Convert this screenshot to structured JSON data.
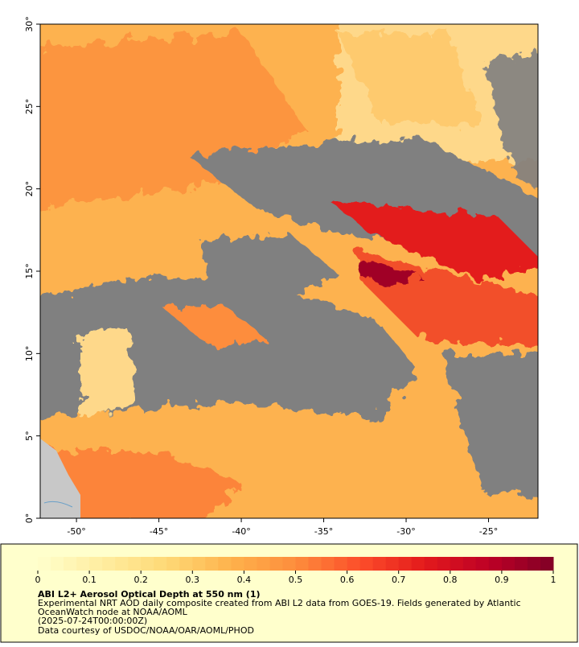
{
  "map": {
    "xlim": [
      -52.2,
      -22.0
    ],
    "ylim": [
      0,
      30
    ],
    "xticks": [
      {
        "value": -50,
        "label": "-50°"
      },
      {
        "value": -45,
        "label": "-45°"
      },
      {
        "value": -40,
        "label": "-40°"
      },
      {
        "value": -35,
        "label": "-35°"
      },
      {
        "value": -30,
        "label": "-30°"
      },
      {
        "value": -25,
        "label": "-25°"
      }
    ],
    "yticks": [
      {
        "value": 0,
        "label": "0°"
      },
      {
        "value": 5,
        "label": "5°"
      },
      {
        "value": 10,
        "label": "10°"
      },
      {
        "value": 15,
        "label": "15°"
      },
      {
        "value": 20,
        "label": "20°"
      },
      {
        "value": 25,
        "label": "25°"
      },
      {
        "value": 30,
        "label": "30°"
      }
    ]
  },
  "colorbar": {
    "lim": [
      0,
      1
    ],
    "ticks": [
      0,
      0.1,
      0.2,
      0.3,
      0.4,
      0.5,
      0.6,
      0.7,
      0.8,
      0.9,
      1
    ],
    "colormap": [
      "#ffffcc",
      "#ffeda0",
      "#fed976",
      "#feb24c",
      "#fd8d3c",
      "#fc4e2a",
      "#e31a1c",
      "#bd0026",
      "#800026"
    ]
  },
  "caption": {
    "title": "ABI L2+ Aerosol Optical Depth at 550 nm (1)",
    "lines": [
      "Experimental NRT AOD daily composite created from ABI L2 data from GOES-19. Fields generated by Atlantic",
      "OceanWatch node at NOAA/AOML",
      "(2025-07-24T00:00:00Z)",
      "Data courtesy of USDOC/NOAA/OAR/AOML/PHOD"
    ]
  }
}
